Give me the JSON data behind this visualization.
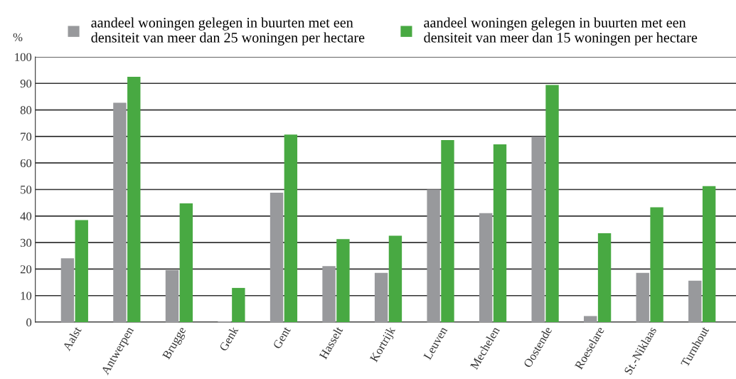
{
  "chart_data": {
    "type": "bar",
    "ylabel": "%",
    "categories": [
      "Aalst",
      "Antwerpen",
      "Brugge",
      "Genk",
      "Gent",
      "Hasselt",
      "Kortrijk",
      "Leuven",
      "Mechelen",
      "Oostende",
      "Roeselare",
      "St.-Niklaas",
      "Turnhout"
    ],
    "series": [
      {
        "name": "aandeel woningen gelegen in buurten met een\ndensiteit van meer dan 25 woningen per hectare",
        "color": "#98999c",
        "values": [
          24.1,
          82.7,
          19.6,
          0.3,
          48.8,
          21.1,
          18.6,
          50.0,
          41.1,
          69.9,
          2.3,
          18.6,
          15.6
        ]
      },
      {
        "name": "aandeel woningen gelegen in buurten met een\ndensiteit van meer dan 15 woningen per hectare",
        "color": "#48a942",
        "values": [
          38.5,
          92.5,
          44.8,
          12.9,
          70.7,
          31.3,
          32.6,
          68.6,
          67.0,
          89.4,
          33.5,
          43.3,
          51.3
        ]
      }
    ],
    "ylim": [
      0,
      100
    ],
    "yticks": [
      0,
      10,
      20,
      30,
      40,
      50,
      60,
      70,
      80,
      90,
      100
    ],
    "grid": "y",
    "legend": "top"
  }
}
